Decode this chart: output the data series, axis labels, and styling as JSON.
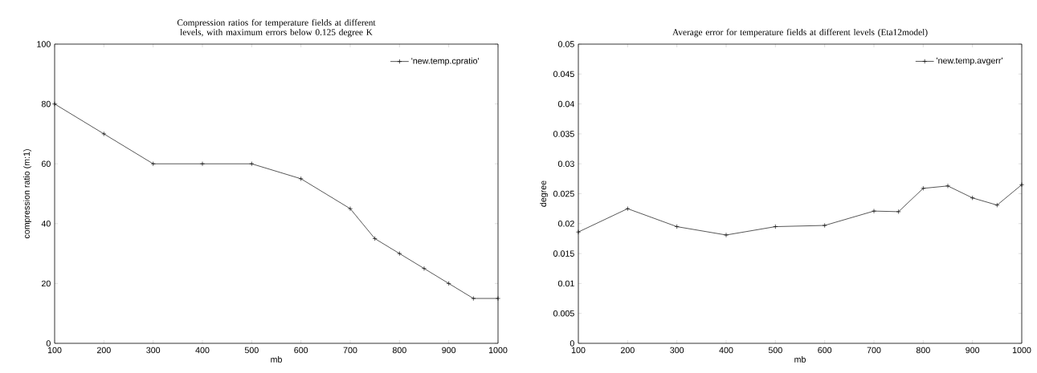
{
  "chart_data": [
    {
      "type": "line",
      "title": "Compression ratios for temperature fields at different levels, with maximum errors below 0.125 degree K",
      "xlabel": "mb",
      "ylabel": "compression ratio (m:1)",
      "x": [
        100,
        200,
        300,
        400,
        500,
        600,
        700,
        750,
        800,
        850,
        900,
        950,
        1000
      ],
      "series": [
        {
          "name": "'new.temp.cpratio'",
          "color": "#000000",
          "values": [
            80,
            70,
            60,
            60,
            60,
            55,
            45,
            35,
            30,
            25,
            20,
            15,
            15
          ]
        }
      ],
      "xlim": [
        100,
        1000
      ],
      "ylim": [
        0,
        100
      ],
      "xticks": [
        100,
        200,
        300,
        400,
        500,
        600,
        700,
        800,
        900,
        1000
      ],
      "yticks": [
        0,
        20,
        40,
        60,
        80,
        100
      ],
      "grid": false,
      "legend": "top right",
      "marker": "cross",
      "line_style": "solid"
    },
    {
      "type": "line",
      "title": "Average error for temperature fields at different levels (Eta12model)",
      "xlabel": "mb",
      "ylabel": "degree",
      "x": [
        100,
        200,
        300,
        400,
        500,
        600,
        700,
        750,
        800,
        850,
        900,
        950,
        1000
      ],
      "series": [
        {
          "name": "'new.temp.avgerr'",
          "color": "#000000",
          "values": [
            0.0186,
            0.0225,
            0.0195,
            0.0181,
            0.0195,
            0.0197,
            0.0221,
            0.022,
            0.0259,
            0.0263,
            0.0243,
            0.0231,
            0.0265
          ]
        }
      ],
      "xlim": [
        100,
        1000
      ],
      "ylim": [
        0,
        0.05
      ],
      "xticks": [
        100,
        200,
        300,
        400,
        500,
        600,
        700,
        800,
        900,
        1000
      ],
      "yticks": [
        0,
        0.005,
        0.01,
        0.015,
        0.02,
        0.025,
        0.03,
        0.035,
        0.04,
        0.045,
        0.05
      ],
      "grid": false,
      "legend": "top right",
      "marker": "cross",
      "line_style": "solid"
    }
  ]
}
